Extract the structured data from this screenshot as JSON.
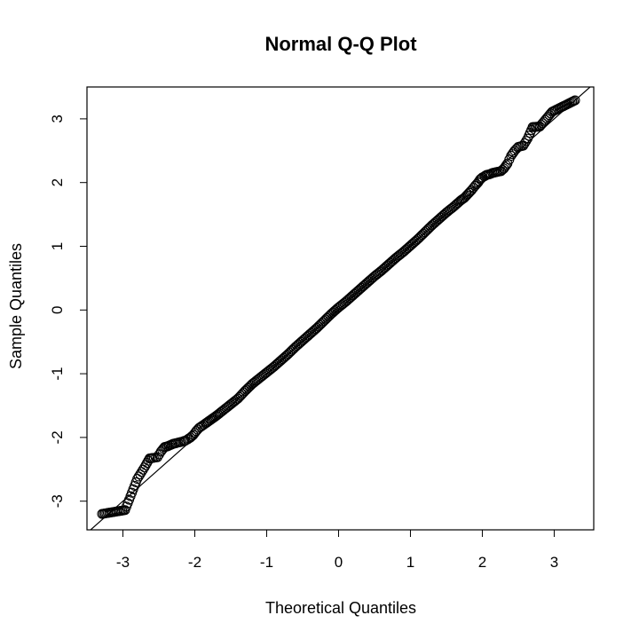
{
  "chart_data": {
    "type": "scatter",
    "title": "Normal Q-Q Plot",
    "xlabel": "Theoretical Quantiles",
    "ylabel": "Sample Quantiles",
    "xlim": [
      -3.5,
      3.55
    ],
    "ylim": [
      -3.45,
      3.5
    ],
    "x_ticks": [
      -3,
      -2,
      -1,
      0,
      1,
      2,
      3
    ],
    "y_ticks": [
      -3,
      -2,
      -1,
      0,
      1,
      2,
      3
    ],
    "grid": false,
    "legend": "none",
    "reference_line": {
      "intercept": 0.0,
      "slope": 1.0
    },
    "n_points": 1000,
    "points": {
      "x": [
        -3.29,
        -2.97,
        -2.8,
        -2.7,
        -2.63,
        -2.57,
        -2.52,
        -2.47,
        -2.42,
        -2.38,
        -2.34,
        -2.3,
        -2.26,
        -2.23,
        -2.19,
        -2.16,
        -2.13,
        -2.1,
        -2.06,
        -2.02,
        -1.98,
        -1.94,
        -1.9,
        -1.85,
        -1.8,
        -1.75,
        -1.7,
        -1.6,
        -1.5,
        -1.4,
        -1.3,
        -1.2,
        -1.1,
        -1.0,
        -0.9,
        -0.8,
        -0.7,
        -0.6,
        -0.5,
        -0.4,
        -0.3,
        -0.2,
        -0.1,
        0.0,
        0.1,
        0.2,
        0.3,
        0.4,
        0.5,
        0.6,
        0.7,
        0.8,
        0.9,
        1.0,
        1.1,
        1.2,
        1.3,
        1.4,
        1.5,
        1.6,
        1.7,
        1.75,
        1.8,
        1.85,
        1.9,
        1.94,
        1.97,
        2.0,
        2.03,
        2.06,
        2.1,
        2.14,
        2.18,
        2.22,
        2.26,
        2.3,
        2.35,
        2.4,
        2.45,
        2.5,
        2.57,
        2.63,
        2.7,
        2.8,
        2.97,
        3.29
      ],
      "y": [
        -3.2,
        -3.14,
        -2.65,
        -2.47,
        -2.33,
        -2.32,
        -2.31,
        -2.22,
        -2.15,
        -2.14,
        -2.12,
        -2.1,
        -2.09,
        -2.08,
        -2.07,
        -2.06,
        -2.05,
        -2.03,
        -2.0,
        -1.96,
        -1.9,
        -1.85,
        -1.82,
        -1.78,
        -1.74,
        -1.7,
        -1.66,
        -1.57,
        -1.48,
        -1.39,
        -1.27,
        -1.16,
        -1.07,
        -0.98,
        -0.89,
        -0.79,
        -0.69,
        -0.58,
        -0.48,
        -0.38,
        -0.28,
        -0.17,
        -0.06,
        0.04,
        0.13,
        0.23,
        0.33,
        0.43,
        0.53,
        0.62,
        0.72,
        0.82,
        0.91,
        1.01,
        1.11,
        1.22,
        1.33,
        1.43,
        1.53,
        1.62,
        1.72,
        1.76,
        1.82,
        1.88,
        1.95,
        2.0,
        2.05,
        2.08,
        2.1,
        2.12,
        2.13,
        2.15,
        2.16,
        2.17,
        2.18,
        2.22,
        2.3,
        2.42,
        2.5,
        2.56,
        2.58,
        2.69,
        2.87,
        2.88,
        3.11,
        3.29
      ]
    }
  }
}
